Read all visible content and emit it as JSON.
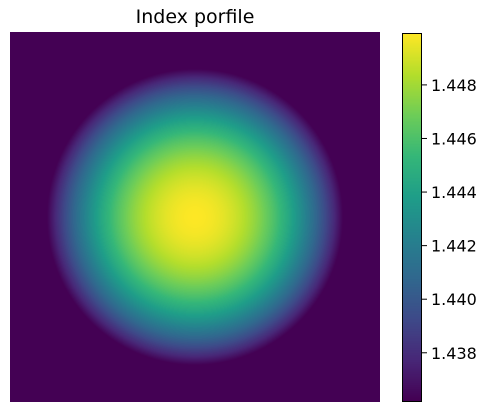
{
  "chart_data": {
    "type": "heatmap",
    "title": "Index porfile",
    "xlabel": "",
    "ylabel": "",
    "colormap": "viridis",
    "axes_visible": false,
    "profile": {
      "shape": "radially symmetric (graded-index fiber)",
      "center_value": 1.4499,
      "cladding_value": 1.4362,
      "core_radius_fraction": 0.8
    },
    "colorbar": {
      "min": 1.4362,
      "max": 1.4499,
      "ticks": [
        "1.438",
        "1.440",
        "1.442",
        "1.444",
        "1.446",
        "1.448"
      ],
      "tick_values": [
        1.438,
        1.44,
        1.442,
        1.444,
        1.446,
        1.448
      ]
    }
  }
}
